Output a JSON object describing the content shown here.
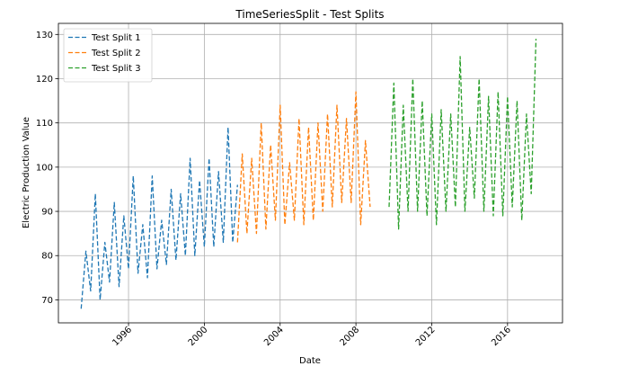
{
  "chart_data": {
    "type": "line",
    "title": "TimeSeriesSplit - Test Splits",
    "xlabel": "Date",
    "ylabel": "Electric Production Value",
    "xlim": [
      1992.3,
      2018.9
    ],
    "ylim": [
      64.8,
      132.5
    ],
    "x_ticks": [
      1996,
      2000,
      2004,
      2008,
      2012,
      2016
    ],
    "y_ticks": [
      70,
      80,
      90,
      100,
      110,
      120,
      130
    ],
    "grid": true,
    "legend_position": "top-left",
    "series": [
      {
        "name": "Test Split 1",
        "color": "#1f77b4",
        "x_start": 1993.5,
        "x_step": 0.25,
        "values": [
          68,
          81,
          72,
          94,
          70,
          83,
          74,
          92,
          73,
          89,
          77,
          98,
          76,
          87,
          75,
          98,
          77,
          88,
          78,
          95,
          79,
          94,
          80,
          102,
          80,
          97,
          82,
          102,
          82,
          99,
          83,
          109,
          83,
          96
        ]
      },
      {
        "name": "Test Split 2",
        "color": "#ff7f0e",
        "x_start": 2001.75,
        "x_step": 0.25,
        "values": [
          83,
          103,
          85,
          102,
          85,
          110,
          86,
          105,
          88,
          114,
          87,
          101,
          88,
          111,
          87,
          109,
          88,
          110,
          90,
          112,
          91,
          114,
          92,
          111,
          92,
          117,
          87,
          106,
          91
        ]
      },
      {
        "name": "Test Split 3",
        "color": "#2ca02c",
        "x_start": 2009.75,
        "x_step": 0.25,
        "values": [
          91,
          119,
          86,
          114,
          90,
          120,
          90,
          115,
          89,
          112,
          87,
          113,
          90,
          112,
          91,
          125,
          90,
          109,
          93,
          120,
          90,
          116,
          89,
          117,
          89,
          116,
          91,
          115,
          88,
          112,
          94,
          129
        ]
      }
    ]
  }
}
